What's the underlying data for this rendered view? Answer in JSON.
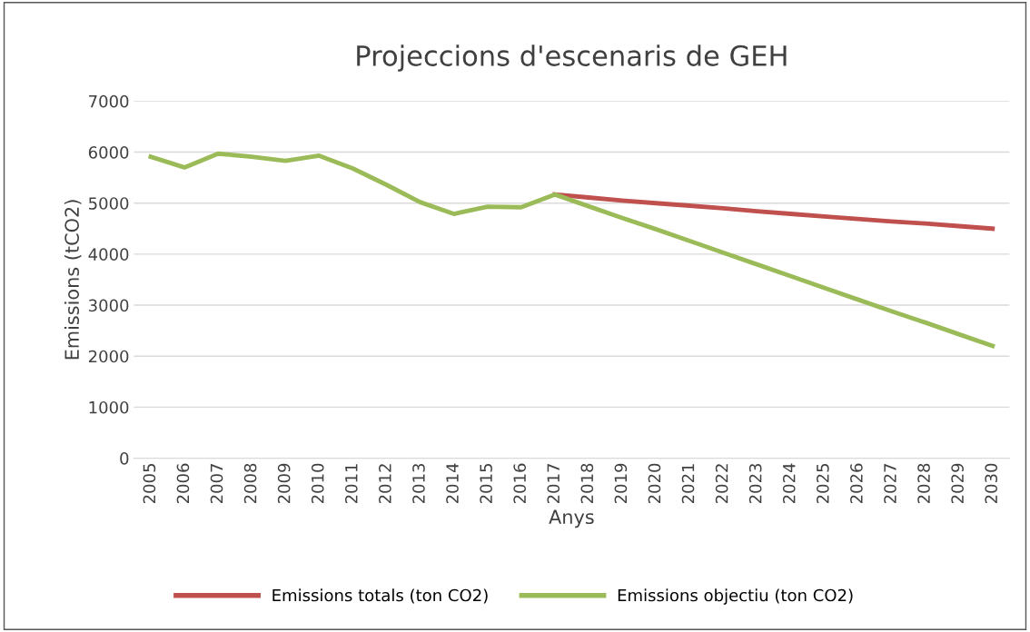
{
  "chart_data": {
    "type": "line",
    "title": "Projeccions d'escenaris de GEH",
    "xlabel": "Anys",
    "ylabel": "Emissions (tCO2)",
    "categories": [
      "2005",
      "2006",
      "2007",
      "2008",
      "2009",
      "2010",
      "2011",
      "2012",
      "2013",
      "2014",
      "2015",
      "2016",
      "2017",
      "2018",
      "2019",
      "2020",
      "2021",
      "2022",
      "2023",
      "2024",
      "2025",
      "2026",
      "2027",
      "2028",
      "2029",
      "2030"
    ],
    "series": [
      {
        "name": "Emissions totals (ton CO2)",
        "color": "#c0504d",
        "values": [
          null,
          null,
          null,
          null,
          null,
          null,
          null,
          null,
          null,
          null,
          null,
          null,
          5170,
          5110,
          5050,
          5000,
          4950,
          4900,
          4840,
          4790,
          4740,
          4690,
          4640,
          4600,
          4550,
          4500
        ]
      },
      {
        "name": "Emissions objectiu (ton CO2)",
        "color": "#9bbb59",
        "values": [
          5910,
          5700,
          5970,
          5910,
          5830,
          5930,
          5680,
          5360,
          5020,
          4790,
          4930,
          4920,
          5170,
          4940,
          4710,
          4490,
          4260,
          4030,
          3800,
          3570,
          3340,
          3110,
          2880,
          2660,
          2430,
          2200
        ]
      }
    ],
    "ylim": [
      0,
      7000
    ],
    "yticks": [
      0,
      1000,
      2000,
      3000,
      4000,
      5000,
      6000,
      7000
    ],
    "grid": "y",
    "legend": "bottom",
    "marker": "none",
    "line_style": "solid"
  }
}
